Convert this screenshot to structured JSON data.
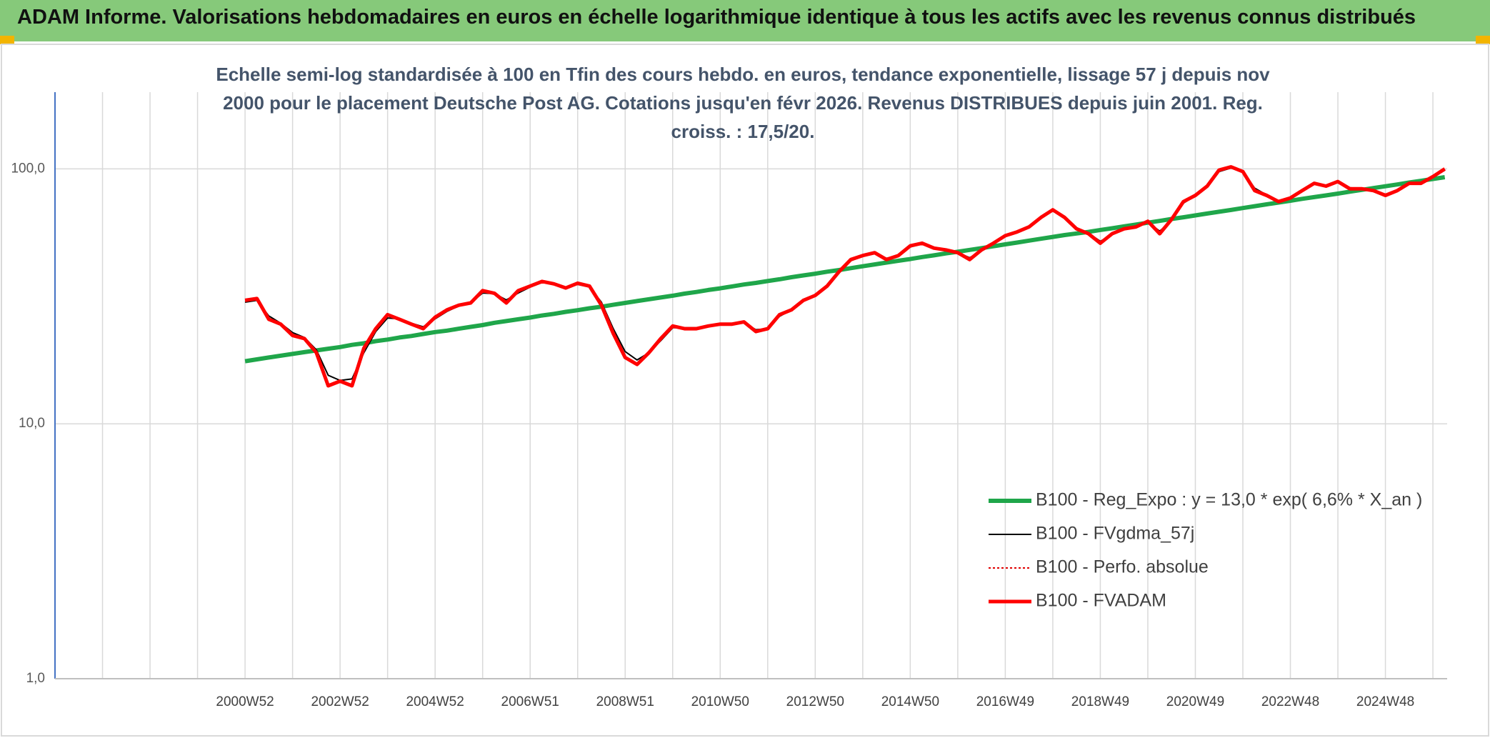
{
  "chart_data": {
    "type": "line",
    "title": "ADAM Informe. Valorisations hebdomadaires en euros en échelle logarithmique identique à tous les actifs avec les revenus connus distribués",
    "subtitle": "Echelle semi-log standardisée à 100 en Tfin des cours hebdo. en euros, tendance exponentielle, lissage 57 j depuis nov 2000 pour le placement Deutsche Post AG. Cotations jusqu'en févr 2026. Revenus DISTRIBUES depuis juin 2001. Reg. croiss. : 17,5/20.",
    "log_scale": true,
    "grid": true,
    "legend": "lower right",
    "ylim": [
      1,
      200
    ],
    "yticks": [
      {
        "value": 1,
        "label": "1,0"
      },
      {
        "value": 10,
        "label": "10,0"
      },
      {
        "value": 100,
        "label": "100,0"
      }
    ],
    "categories": [
      null,
      null,
      null,
      null,
      null,
      null,
      null,
      null,
      null,
      null,
      null,
      null,
      null,
      null,
      null,
      null,
      "2000W52",
      null,
      null,
      null,
      null,
      null,
      null,
      null,
      "2002W52",
      null,
      null,
      null,
      null,
      null,
      null,
      null,
      "2004W52",
      null,
      null,
      null,
      null,
      null,
      null,
      null,
      "2006W51",
      null,
      null,
      null,
      null,
      null,
      null,
      null,
      "2008W51",
      null,
      null,
      null,
      null,
      null,
      null,
      null,
      "2010W50",
      null,
      null,
      null,
      null,
      null,
      null,
      null,
      "2012W50",
      null,
      null,
      null,
      null,
      null,
      null,
      null,
      "2014W50",
      null,
      null,
      null,
      null,
      null,
      null,
      null,
      "2016W49",
      null,
      null,
      null,
      null,
      null,
      null,
      null,
      "2018W49",
      null,
      null,
      null,
      null,
      null,
      null,
      null,
      "2020W49",
      null,
      null,
      null,
      null,
      null,
      null,
      null,
      "2022W48",
      null,
      null,
      null,
      null,
      null,
      null,
      null,
      "2024W48",
      null,
      null,
      null,
      null,
      null
    ],
    "series": [
      {
        "name": "B100 - Reg_Expo : y = 13,0 * exp( 6,6% *  X_an )",
        "color": "#1fa64a",
        "width": 6,
        "dash": "solid",
        "values": [
          null,
          null,
          null,
          null,
          null,
          null,
          null,
          null,
          null,
          null,
          null,
          null,
          null,
          null,
          null,
          null,
          17.6,
          17.9,
          18.2,
          18.5,
          18.8,
          19.1,
          19.4,
          19.7,
          20.0,
          20.4,
          20.7,
          21.1,
          21.4,
          21.8,
          22.1,
          22.5,
          22.9,
          23.2,
          23.6,
          24.0,
          24.4,
          24.9,
          25.3,
          25.7,
          26.1,
          26.6,
          27.0,
          27.5,
          27.9,
          28.4,
          28.8,
          29.3,
          29.8,
          30.3,
          30.8,
          31.3,
          31.8,
          32.4,
          32.9,
          33.5,
          34.0,
          34.6,
          35.2,
          35.7,
          36.3,
          36.9,
          37.6,
          38.2,
          38.8,
          39.5,
          40.1,
          40.8,
          41.5,
          42.2,
          42.9,
          43.6,
          44.3,
          45.1,
          45.8,
          46.6,
          47.3,
          48.1,
          48.9,
          49.7,
          50.6,
          51.4,
          52.3,
          53.2,
          54.1,
          55.0,
          55.8,
          56.6,
          57.6,
          58.5,
          59.5,
          60.5,
          61.5,
          62.5,
          63.6,
          64.6,
          65.7,
          66.8,
          67.9,
          69.0,
          70.2,
          71.4,
          72.6,
          73.8,
          75.0,
          76.3,
          77.5,
          78.7,
          80.0,
          81.4,
          82.7,
          84.1,
          85.5,
          86.9,
          88.4,
          89.8,
          91.3,
          92.8
        ]
      },
      {
        "name": "B100 - FVgdma_57j",
        "color": "#000000",
        "width": 2,
        "dash": "solid",
        "values": [
          null,
          null,
          null,
          null,
          null,
          null,
          null,
          null,
          null,
          null,
          null,
          null,
          null,
          null,
          null,
          null,
          30.0,
          30.5,
          26.5,
          24.8,
          22.8,
          21.8,
          19.5,
          15.5,
          14.8,
          15.0,
          19.0,
          23.0,
          26.0,
          25.8,
          24.8,
          24.0,
          25.8,
          27.6,
          29.0,
          29.8,
          32.6,
          32.4,
          30.6,
          32.6,
          34.4,
          35.8,
          35.4,
          34.4,
          35.2,
          34.4,
          30.0,
          23.6,
          19.2,
          17.8,
          19.0,
          21.2,
          23.8,
          23.8,
          23.8,
          24.2,
          24.5,
          24.6,
          24.9,
          23.4,
          23.6,
          26.4,
          28.0,
          30.3,
          31.8,
          34.4,
          39.0,
          43.6,
          45.4,
          46.5,
          44.6,
          45.6,
          49.4,
          50.8,
          49.0,
          48.2,
          47.0,
          44.8,
          47.6,
          50.8,
          54.4,
          56.4,
          59.0,
          64.0,
          68.4,
          65.0,
          58.8,
          56.0,
          52.0,
          55.2,
          58.0,
          59.2,
          61.8,
          57.0,
          62.6,
          73.4,
          78.4,
          85.0,
          97.6,
          100.8,
          97.6,
          84.0,
          79.0,
          75.2,
          76.8,
          81.8,
          87.2,
          85.8,
          88.6,
          84.4,
          83.6,
          82.4,
          79.4,
          82.0,
          87.2,
          88.0,
          92.6,
          98.8
        ]
      },
      {
        "name": "B100 - Perfo. absolue",
        "color": "#e00000",
        "width": 2,
        "dash": "dotted",
        "values": [
          null,
          null,
          null,
          null,
          null,
          null,
          null,
          null,
          null,
          null,
          null,
          null,
          null,
          null,
          null,
          null,
          30.5,
          31,
          25.7,
          24.6,
          22.2,
          21.6,
          19.0,
          14.1,
          14.7,
          14.1,
          19.8,
          23.6,
          26.8,
          25.7,
          24.6,
          23.6,
          26.2,
          28.0,
          29.2,
          29.8,
          33.3,
          32.5,
          29.8,
          33.3,
          34.7,
          36.2,
          35.4,
          34.1,
          35.6,
          34.7,
          29.2,
          22.6,
          18.2,
          17.1,
          19.0,
          21.6,
          24.2,
          23.6,
          23.6,
          24.2,
          24.6,
          24.6,
          25.1,
          23.0,
          23.6,
          26.8,
          28.0,
          30.5,
          31.9,
          34.7,
          39.5,
          44.1,
          45.7,
          46.9,
          44.1,
          45.7,
          49.9,
          51.1,
          48.9,
          48.1,
          46.9,
          44.1,
          48.1,
          51.1,
          54.7,
          56.6,
          59.2,
          64.5,
          69.1,
          64.5,
          58.2,
          55.7,
          51.1,
          55.7,
          58.2,
          59.2,
          62.3,
          55.7,
          63.4,
          74.4,
          78.7,
          85.6,
          99,
          101.8,
          97.6,
          82.2,
          78.7,
          74.4,
          76.9,
          82.2,
          87.8,
          85.6,
          89.2,
          83.6,
          83.6,
          82.2,
          78.7,
          82.2,
          87.8,
          87.8,
          93.3,
          100
        ]
      },
      {
        "name": "B100 - FVADAM",
        "color": "#ff0000",
        "width": 5,
        "dash": "solid",
        "values": [
          null,
          null,
          null,
          null,
          null,
          null,
          null,
          null,
          null,
          null,
          null,
          null,
          null,
          null,
          null,
          null,
          30.5,
          31,
          25.7,
          24.6,
          22.2,
          21.6,
          19.0,
          14.1,
          14.7,
          14.1,
          19.8,
          23.6,
          26.8,
          25.7,
          24.6,
          23.6,
          26.2,
          28.0,
          29.2,
          29.8,
          33.3,
          32.5,
          29.8,
          33.3,
          34.7,
          36.2,
          35.4,
          34.1,
          35.6,
          34.7,
          29.2,
          22.6,
          18.2,
          17.1,
          19.0,
          21.6,
          24.2,
          23.6,
          23.6,
          24.2,
          24.6,
          24.6,
          25.1,
          23.0,
          23.6,
          26.8,
          28.0,
          30.5,
          31.9,
          34.7,
          39.5,
          44.1,
          45.7,
          46.9,
          44.1,
          45.7,
          49.9,
          51.1,
          48.9,
          48.1,
          46.9,
          44.1,
          48.1,
          51.1,
          54.7,
          56.6,
          59.2,
          64.5,
          69.1,
          64.5,
          58.2,
          55.7,
          51.1,
          55.7,
          58.2,
          59.2,
          62.3,
          55.7,
          63.4,
          74.4,
          78.7,
          85.6,
          99,
          101.8,
          97.6,
          82.2,
          78.7,
          74.4,
          76.9,
          82.2,
          87.8,
          85.6,
          89.2,
          83.6,
          83.6,
          82.2,
          78.7,
          82.2,
          87.8,
          87.8,
          93.3,
          100
        ]
      }
    ]
  }
}
